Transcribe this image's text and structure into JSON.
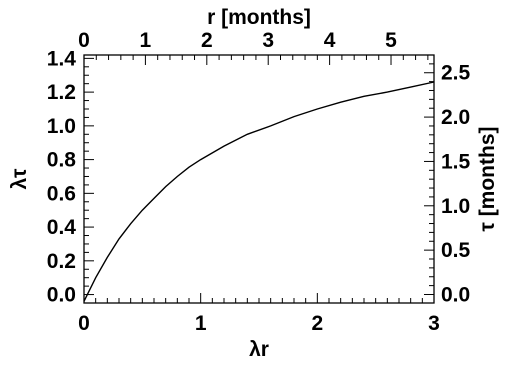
{
  "chart_data": {
    "type": "line",
    "title": "",
    "xlabel": "λr",
    "ylabel": "λτ",
    "top_xlabel": "r [months]",
    "right_ylabel": "τ [months]",
    "xlim": [
      0,
      3
    ],
    "ylim": [
      -0.05,
      1.42
    ],
    "top_xlim": [
      0,
      5.7
    ],
    "right_ylim": [
      -0.096,
      2.7
    ],
    "grid": false,
    "legend": "none",
    "x_ticks": [
      "0",
      "1",
      "2",
      "3"
    ],
    "y_ticks": [
      "0.0",
      "0.2",
      "0.4",
      "0.6",
      "0.8",
      "1.0",
      "1.2",
      "1.4"
    ],
    "top_x_ticks": [
      "0",
      "1",
      "2",
      "3",
      "4",
      "5"
    ],
    "right_y_ticks": [
      "0.0",
      "0.5",
      "1.0",
      "1.5",
      "2.0",
      "2.5"
    ],
    "series": [
      {
        "x": [
          0,
          0.1,
          0.2,
          0.3,
          0.4,
          0.5,
          0.6,
          0.7,
          0.8,
          0.9,
          1.0,
          1.2,
          1.4,
          1.6,
          1.8,
          2.0,
          2.2,
          2.4,
          2.6,
          2.8,
          3.0
        ],
        "y": [
          -0.04,
          0.1,
          0.22,
          0.33,
          0.42,
          0.5,
          0.57,
          0.64,
          0.7,
          0.755,
          0.8,
          0.88,
          0.95,
          1.0,
          1.055,
          1.1,
          1.14,
          1.175,
          1.2,
          1.23,
          1.26
        ]
      }
    ],
    "line_color": "#000000"
  }
}
